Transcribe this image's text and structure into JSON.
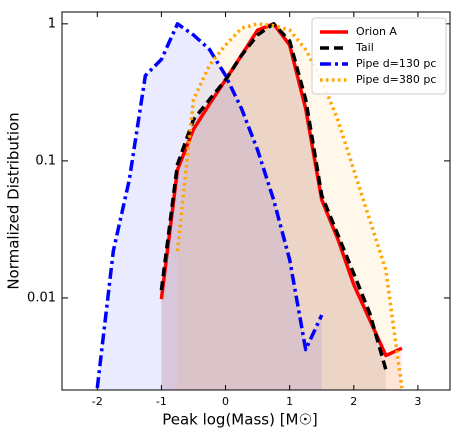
{
  "chart_data": {
    "type": "line",
    "log_y": true,
    "xlabel": "Peak log(Mass) [M☉]",
    "ylabel": "Normalized Distribution",
    "x": [
      -2,
      -1.75,
      -1.5,
      -1.25,
      -1,
      -0.75,
      -0.5,
      -0.25,
      0,
      0.25,
      0.5,
      0.75,
      1,
      1.25,
      1.5,
      1.75,
      2,
      2.25,
      2.5,
      2.75
    ],
    "series": [
      {
        "name": "Orion A",
        "color": "#ff0000",
        "linestyle": "solid",
        "values": [
          null,
          null,
          null,
          null,
          0.0098,
          0.086,
          0.17,
          0.26,
          0.39,
          0.59,
          0.9,
          1.0,
          0.7,
          0.24,
          0.052,
          0.027,
          0.0125,
          0.0069,
          0.0038,
          0.0043
        ]
      },
      {
        "name": "Tail",
        "color": "#000000",
        "linestyle": "dashed",
        "values": [
          null,
          null,
          null,
          null,
          0.0114,
          0.094,
          0.2,
          0.28,
          0.39,
          0.59,
          0.83,
          1.0,
          0.75,
          0.28,
          0.056,
          0.029,
          0.015,
          0.0077,
          0.003,
          null
        ]
      },
      {
        "name": "Pipe d=130 pc",
        "color": "#0000ff",
        "linestyle": "dashdot",
        "values": [
          0.0022,
          0.022,
          0.073,
          0.42,
          0.55,
          1.0,
          0.83,
          0.65,
          0.42,
          0.24,
          0.12,
          0.052,
          0.019,
          0.0042,
          0.0075,
          null,
          null,
          null,
          null,
          null
        ]
      },
      {
        "name": "Pipe d=380 pc",
        "color": "#ffa500",
        "linestyle": "dotted",
        "values": [
          null,
          null,
          null,
          null,
          null,
          0.022,
          0.28,
          0.5,
          0.7,
          0.93,
          1.0,
          0.97,
          0.9,
          0.65,
          0.39,
          0.2,
          0.086,
          0.037,
          0.016,
          0.0022
        ]
      }
    ],
    "xlim": [
      -2.55,
      3.5
    ],
    "ylim": [
      0.00213,
      1.22
    ],
    "xticks": [
      -2,
      -1,
      0,
      1,
      2,
      3
    ],
    "yticks": [
      0.01,
      0.1,
      1
    ],
    "legend": "upper right"
  }
}
